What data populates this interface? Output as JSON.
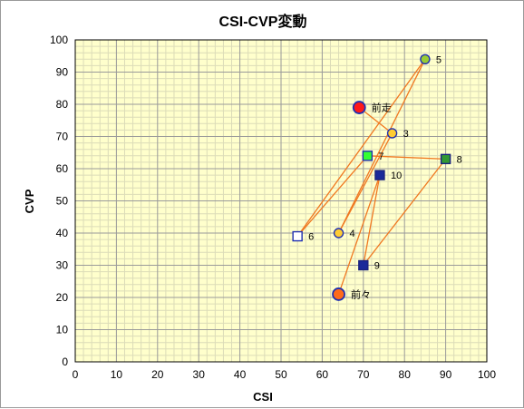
{
  "chart_data": {
    "type": "scatter",
    "title": "CSI-CVP変動",
    "xlabel": "CSI",
    "ylabel": "CVP",
    "xlim": [
      0,
      100
    ],
    "ylim": [
      0,
      100
    ],
    "x_ticks": [
      "0",
      "10",
      "20",
      "30",
      "40",
      "50",
      "60",
      "70",
      "80",
      "90",
      "100"
    ],
    "y_ticks": [
      "0",
      "10",
      "20",
      "30",
      "40",
      "50",
      "60",
      "70",
      "80",
      "90",
      "100"
    ],
    "grid": true,
    "plot_background": "#ffffcc",
    "line_color": "#f07820",
    "connection_order": [
      "前々",
      "10",
      "9",
      "8",
      "7",
      "6",
      "5",
      "4",
      "3",
      "前走"
    ],
    "points": [
      {
        "label": "前走",
        "x": 69,
        "y": 79,
        "marker": "circle-large",
        "fill": "#ff1a1a",
        "stroke": "#2030b0"
      },
      {
        "label": "3",
        "x": 77,
        "y": 71,
        "marker": "circle",
        "fill": "#ffcc33",
        "stroke": "#2030b0"
      },
      {
        "label": "5",
        "x": 85,
        "y": 94,
        "marker": "circle",
        "fill": "#99cc33",
        "stroke": "#2030b0"
      },
      {
        "label": "7",
        "x": 71,
        "y": 64,
        "marker": "square",
        "fill": "#33ff33",
        "stroke": "#2030b0"
      },
      {
        "label": "8",
        "x": 90,
        "y": 63,
        "marker": "square",
        "fill": "#339933",
        "stroke": "#1a237e"
      },
      {
        "label": "10",
        "x": 74,
        "y": 58,
        "marker": "square",
        "fill": "#1a2a99",
        "stroke": "#1a237e"
      },
      {
        "label": "4",
        "x": 64,
        "y": 40,
        "marker": "circle",
        "fill": "#ffcc33",
        "stroke": "#2030b0"
      },
      {
        "label": "6",
        "x": 54,
        "y": 39,
        "marker": "square",
        "fill": "#ffffff",
        "stroke": "#2030b0"
      },
      {
        "label": "9",
        "x": 70,
        "y": 30,
        "marker": "square",
        "fill": "#1a2a99",
        "stroke": "#1a237e"
      },
      {
        "label": "前々",
        "x": 64,
        "y": 21,
        "marker": "circle-large",
        "fill": "#ff6a1a",
        "stroke": "#2030b0"
      }
    ]
  }
}
